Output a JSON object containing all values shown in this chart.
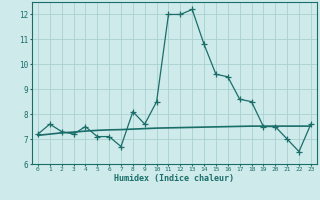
{
  "xlabel": "Humidex (Indice chaleur)",
  "background_color": "#ceeaea",
  "grid_color": "#aad0d0",
  "line_color": "#1a6e6a",
  "x": [
    0,
    1,
    2,
    3,
    4,
    5,
    6,
    7,
    8,
    9,
    10,
    11,
    12,
    13,
    14,
    15,
    16,
    17,
    18,
    19,
    20,
    21,
    22,
    23
  ],
  "y_main": [
    7.2,
    7.6,
    7.3,
    7.2,
    7.5,
    7.1,
    7.1,
    6.7,
    8.1,
    7.6,
    8.5,
    12.0,
    12.0,
    12.2,
    10.8,
    9.6,
    9.5,
    8.6,
    8.5,
    7.5,
    7.5,
    7.0,
    6.5,
    7.6
  ],
  "y_trend": [
    7.15,
    7.2,
    7.25,
    7.28,
    7.32,
    7.35,
    7.37,
    7.38,
    7.4,
    7.42,
    7.44,
    7.45,
    7.46,
    7.47,
    7.48,
    7.49,
    7.5,
    7.51,
    7.52,
    7.52,
    7.52,
    7.52,
    7.52,
    7.52
  ],
  "ylim": [
    6.0,
    12.5
  ],
  "yticks": [
    6,
    7,
    8,
    9,
    10,
    11,
    12
  ],
  "xlim": [
    -0.5,
    23.5
  ]
}
